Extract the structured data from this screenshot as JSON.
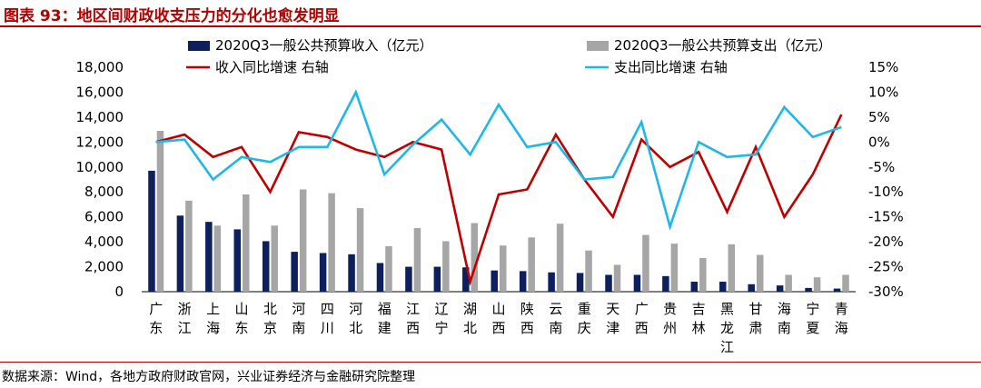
{
  "title": "图表 93：地区间财政收支压力的分化也愈发明显",
  "source": "数据来源：Wind，各地方政府财政官网，兴业证券经济与金融研究院整理",
  "chart_data": {
    "type": "bar",
    "categories": [
      "广东",
      "浙江",
      "上海",
      "山东",
      "北京",
      "河南",
      "四川",
      "河北",
      "福建",
      "江西",
      "辽宁",
      "湖北",
      "山西",
      "陕西",
      "云南",
      "重庆",
      "天津",
      "广西",
      "贵州",
      "吉林",
      "黑龙江",
      "甘肃",
      "海南",
      "宁夏",
      "青海"
    ],
    "left_axis": {
      "ylim": [
        0,
        18000
      ],
      "ticks": [
        "0",
        "2,000",
        "4,000",
        "6,000",
        "8,000",
        "10,000",
        "12,000",
        "14,000",
        "16,000",
        "18,000"
      ]
    },
    "right_axis": {
      "ylim": [
        -30,
        15
      ],
      "ticks": [
        "-30%",
        "-25%",
        "-20%",
        "-15%",
        "-10%",
        "-5%",
        "0%",
        "5%",
        "10%",
        "15%"
      ]
    },
    "series": [
      {
        "name": "2020Q3一般公共预算收入（亿元）",
        "kind": "bar",
        "axis": "left",
        "color": "#0d1f5c",
        "values": [
          9700,
          6100,
          5600,
          5000,
          4050,
          3200,
          3100,
          3000,
          2300,
          2000,
          2000,
          1950,
          1700,
          1650,
          1550,
          1500,
          1350,
          1350,
          1250,
          800,
          800,
          600,
          500,
          300,
          250
        ]
      },
      {
        "name": "2020Q3一般公共预算支出（亿元）",
        "kind": "bar",
        "axis": "left",
        "color": "#a6a6a6",
        "values": [
          12900,
          7300,
          5300,
          7800,
          5300,
          8200,
          7900,
          6700,
          3650,
          5100,
          4050,
          5500,
          3700,
          4350,
          5450,
          3300,
          2150,
          4550,
          3850,
          2700,
          3800,
          2950,
          1350,
          1150,
          1350
        ]
      },
      {
        "name": "收入同比增速 右轴",
        "kind": "line",
        "axis": "right",
        "color": "#c00000",
        "values": [
          0,
          1.5,
          -3,
          -1,
          -10,
          2,
          1,
          -1.5,
          -3,
          0,
          -1.5,
          -28,
          -10.5,
          -9.5,
          1.5,
          -7.5,
          -15,
          0.5,
          -5,
          -2,
          -14,
          -1,
          -15,
          -6.5,
          5.5
        ]
      },
      {
        "name": "支出同比增速 右轴",
        "kind": "line",
        "axis": "right",
        "color": "#1fb7e8",
        "values": [
          0,
          0.5,
          -7.5,
          -3,
          -4,
          -1,
          -1,
          10,
          -6.5,
          -0.5,
          4.5,
          -2.5,
          7.5,
          -1,
          0,
          -7.5,
          -7,
          4,
          -17,
          0,
          -3,
          -2.5,
          7,
          1,
          3
        ]
      }
    ]
  }
}
